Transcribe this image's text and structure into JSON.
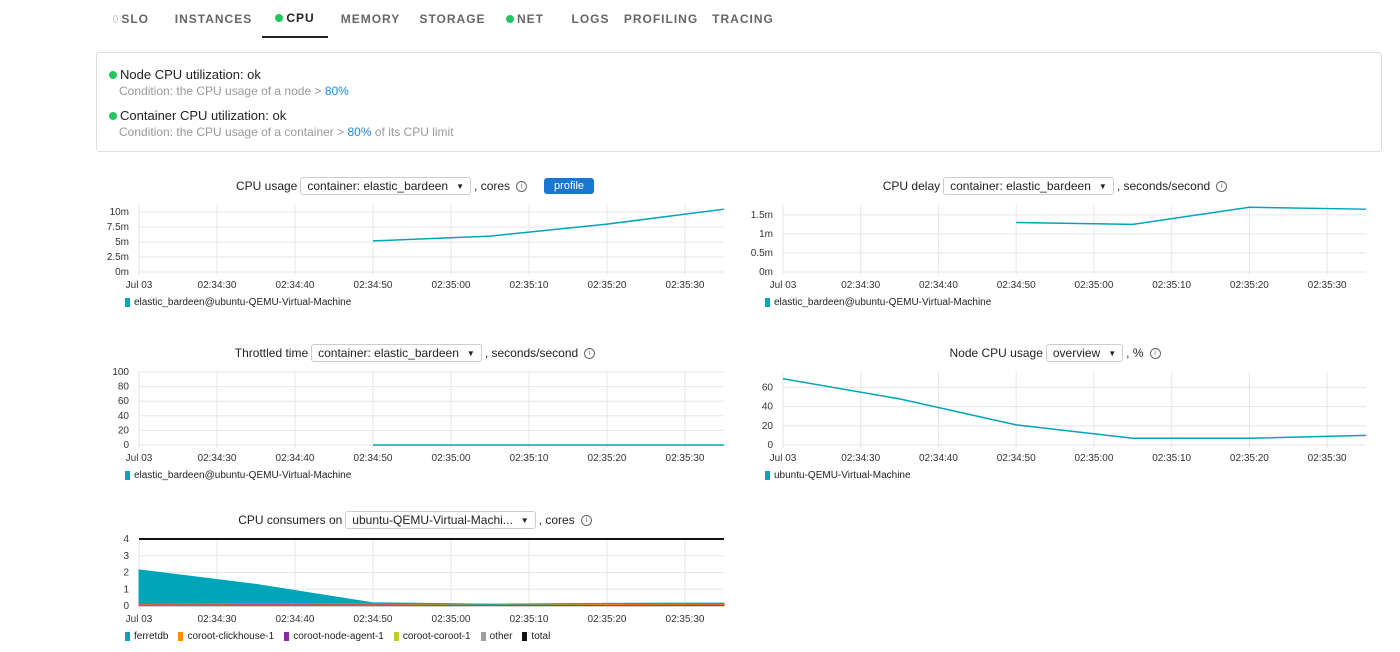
{
  "tabs": [
    {
      "label": "SLO",
      "status": "none"
    },
    {
      "label": "INSTANCES",
      "status": "ok"
    },
    {
      "label": "CPU",
      "status": "ok",
      "active": true
    },
    {
      "label": "MEMORY",
      "status": "ok"
    },
    {
      "label": "STORAGE",
      "status": "ok"
    },
    {
      "label": "NET",
      "status": "ok"
    },
    {
      "label": "LOGS",
      "status": "ok"
    },
    {
      "label": "PROFILING"
    },
    {
      "label": "TRACING"
    }
  ],
  "checks": [
    {
      "title": "Node CPU utilization: ok",
      "cond_pre": "Condition: the CPU usage of a node > ",
      "threshold": "80%",
      "cond_post": ""
    },
    {
      "title": "Container CPU utilization: ok",
      "cond_pre": "Condition: the CPU usage of a container > ",
      "threshold": "80%",
      "cond_post": " of its CPU limit"
    }
  ],
  "colors": {
    "line": "#00a5b8",
    "ok": "#22c55e",
    "accent": "#1976d2"
  },
  "chart_data": [
    {
      "type": "line",
      "title": "CPU usage",
      "select": "container: elastic_bardeen",
      "unit": ", cores",
      "button": "profile",
      "x_ticks": [
        "Jul 03",
        "02:34:30",
        "02:34:40",
        "02:34:50",
        "02:35:00",
        "02:35:10",
        "02:35:20",
        "02:35:30"
      ],
      "x_range": [
        "02:34:20",
        "02:35:35"
      ],
      "ylim": [
        0,
        0.0112
      ],
      "y_ticks": [
        {
          "v": 0,
          "label": "0m"
        },
        {
          "v": 0.0025,
          "label": "2.5m"
        },
        {
          "v": 0.005,
          "label": "5m"
        },
        {
          "v": 0.0075,
          "label": "7.5m"
        },
        {
          "v": 0.01,
          "label": "10m"
        }
      ],
      "series": [
        {
          "name": "elastic_bardeen@ubuntu-QEMU-Virtual-Machine",
          "color": "#00a5b8",
          "x": [
            "02:34:50",
            "02:35:05",
            "02:35:20",
            "02:35:35"
          ],
          "values": [
            0.0052,
            0.006,
            0.008,
            0.0105
          ]
        }
      ]
    },
    {
      "type": "line",
      "title": "CPU delay",
      "select": "container: elastic_bardeen",
      "unit": ", seconds/second",
      "x_ticks": [
        "Jul 03",
        "02:34:30",
        "02:34:40",
        "02:34:50",
        "02:35:00",
        "02:35:10",
        "02:35:20",
        "02:35:30"
      ],
      "x_range": [
        "02:34:20",
        "02:35:35"
      ],
      "ylim": [
        0,
        0.00176
      ],
      "y_ticks": [
        {
          "v": 0,
          "label": "0m"
        },
        {
          "v": 0.0005,
          "label": "0.5m"
        },
        {
          "v": 0.001,
          "label": "1m"
        },
        {
          "v": 0.0015,
          "label": "1.5m"
        }
      ],
      "series": [
        {
          "name": "elastic_bardeen@ubuntu-QEMU-Virtual-Machine",
          "color": "#00a5b8",
          "x": [
            "02:34:50",
            "02:35:05",
            "02:35:20",
            "02:35:35"
          ],
          "values": [
            0.0013,
            0.00125,
            0.0017,
            0.00165
          ]
        }
      ]
    },
    {
      "type": "line",
      "title": "Throttled time",
      "select": "container: elastic_bardeen",
      "unit": ", seconds/second",
      "x_ticks": [
        "Jul 03",
        "02:34:30",
        "02:34:40",
        "02:34:50",
        "02:35:00",
        "02:35:10",
        "02:35:20",
        "02:35:30"
      ],
      "x_range": [
        "02:34:20",
        "02:35:35"
      ],
      "ylim": [
        0,
        100
      ],
      "y_ticks": [
        {
          "v": 0,
          "label": "0"
        },
        {
          "v": 20,
          "label": "20"
        },
        {
          "v": 40,
          "label": "40"
        },
        {
          "v": 60,
          "label": "60"
        },
        {
          "v": 80,
          "label": "80"
        },
        {
          "v": 100,
          "label": "100"
        }
      ],
      "series": [
        {
          "name": "elastic_bardeen@ubuntu-QEMU-Virtual-Machine",
          "color": "#00a5b8",
          "x": [
            "02:34:50",
            "02:35:05",
            "02:35:20",
            "02:35:35"
          ],
          "values": [
            0,
            0,
            0,
            0
          ]
        }
      ]
    },
    {
      "type": "line",
      "title": "Node CPU usage",
      "select": "overview",
      "unit": ", %",
      "x_ticks": [
        "Jul 03",
        "02:34:30",
        "02:34:40",
        "02:34:50",
        "02:35:00",
        "02:35:10",
        "02:35:20",
        "02:35:30"
      ],
      "x_range": [
        "02:34:20",
        "02:35:35"
      ],
      "ylim": [
        0,
        76
      ],
      "y_ticks": [
        {
          "v": 0,
          "label": "0"
        },
        {
          "v": 20,
          "label": "20"
        },
        {
          "v": 40,
          "label": "40"
        },
        {
          "v": 60,
          "label": "60"
        }
      ],
      "series": [
        {
          "name": "ubuntu-QEMU-Virtual-Machine",
          "color": "#00a5b8",
          "x": [
            "02:34:20",
            "02:34:35",
            "02:34:50",
            "02:35:05",
            "02:35:20",
            "02:35:35"
          ],
          "values": [
            69,
            48,
            21,
            7,
            7,
            10
          ]
        }
      ]
    },
    {
      "type": "area",
      "title": "CPU consumers on",
      "select": "ubuntu-QEMU-Virtual-Machi...",
      "unit": ", cores",
      "x_ticks": [
        "Jul 03",
        "02:34:30",
        "02:34:40",
        "02:34:50",
        "02:35:00",
        "02:35:10",
        "02:35:20",
        "02:35:30"
      ],
      "x_range": [
        "02:34:20",
        "02:35:35"
      ],
      "ylim": [
        0,
        4
      ],
      "y_ticks": [
        {
          "v": 0,
          "label": "0"
        },
        {
          "v": 1,
          "label": "1"
        },
        {
          "v": 2,
          "label": "2"
        },
        {
          "v": 3,
          "label": "3"
        },
        {
          "v": 4,
          "label": "4"
        }
      ],
      "series": [
        {
          "name": "other",
          "color": "#9e9e9e",
          "stacked": true,
          "x": [
            "02:34:20",
            "02:34:35",
            "02:34:50",
            "02:35:05",
            "02:35:20",
            "02:35:35"
          ],
          "values": [
            0.03,
            0.03,
            0.03,
            0.02,
            0.02,
            0.02
          ]
        },
        {
          "name": "coroot-coroot-1",
          "color": "#c0ca33",
          "stacked": true,
          "x": [
            "02:34:20",
            "02:34:35",
            "02:34:50",
            "02:35:05",
            "02:35:20",
            "02:35:35"
          ],
          "values": [
            0.02,
            0.02,
            0.02,
            0.01,
            0.02,
            0.02
          ]
        },
        {
          "name": "coroot-node-agent-1",
          "color": "#8e24aa",
          "stacked": true,
          "x": [
            "02:34:20",
            "02:34:35",
            "02:34:50",
            "02:35:05",
            "02:35:20",
            "02:35:35"
          ],
          "values": [
            0.06,
            0.08,
            0.07,
            0.04,
            0.06,
            0.07
          ]
        },
        {
          "name": "coroot-clickhouse-1",
          "color": "#ff8f00",
          "stacked": true,
          "x": [
            "02:34:20",
            "02:34:35",
            "02:34:50",
            "02:35:05",
            "02:35:20",
            "02:35:35"
          ],
          "values": [
            0.05,
            0.06,
            0.05,
            0.03,
            0.05,
            0.05
          ]
        },
        {
          "name": "ferretdb",
          "color": "#00a5b8",
          "stacked": true,
          "x": [
            "02:34:20",
            "02:34:35",
            "02:34:50",
            "02:35:05",
            "02:35:20",
            "02:35:35"
          ],
          "values": [
            2.0,
            1.1,
            0.02,
            0.01,
            0.01,
            0.01
          ]
        },
        {
          "name": "total",
          "color": "#111111",
          "stacked": false,
          "x": [
            "02:34:20",
            "02:35:35"
          ],
          "values": [
            4,
            4
          ]
        }
      ],
      "legend_order": [
        "ferretdb",
        "coroot-clickhouse-1",
        "coroot-node-agent-1",
        "coroot-coroot-1",
        "other",
        "total"
      ]
    }
  ]
}
